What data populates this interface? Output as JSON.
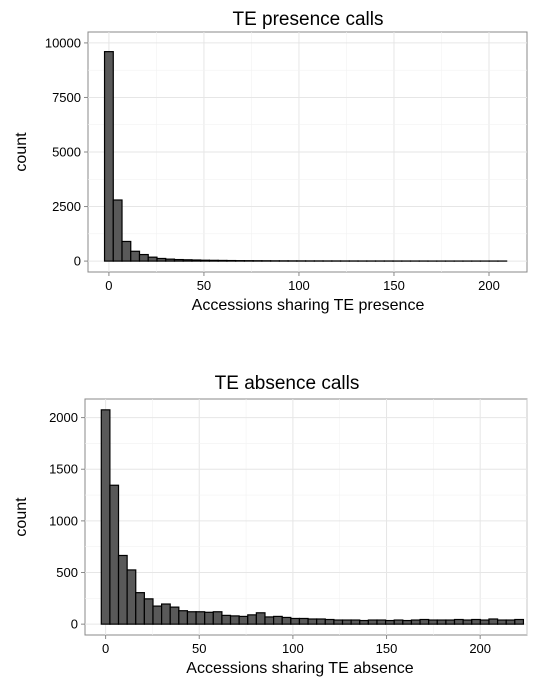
{
  "chart_data": [
    {
      "type": "bar",
      "title": "TE presence calls",
      "xlabel": "Accessions sharing TE presence",
      "ylabel": "count",
      "bin_width": 4.6,
      "x_start": -2.3,
      "xlim": [
        -11,
        220
      ],
      "ylim": [
        -500,
        10500
      ],
      "xticks": [
        0,
        50,
        100,
        150,
        200
      ],
      "yticks": [
        0,
        2500,
        5000,
        7500,
        10000
      ],
      "grid": true,
      "values": [
        9600,
        2800,
        900,
        450,
        300,
        180,
        120,
        90,
        70,
        60,
        50,
        40,
        35,
        30,
        25,
        20,
        18,
        16,
        14,
        12,
        11,
        10,
        9,
        8,
        8,
        7,
        7,
        6,
        6,
        5,
        5,
        5,
        5,
        4,
        4,
        4,
        4,
        3,
        3,
        3,
        3,
        3,
        3,
        3,
        3,
        3
      ]
    },
    {
      "type": "bar",
      "title": "TE absence calls",
      "xlabel": "Accessions sharing TE absence",
      "ylabel": "count",
      "bin_width": 4.6,
      "x_start": -2.3,
      "xlim": [
        -11,
        225
      ],
      "ylim": [
        -105,
        2180
      ],
      "xticks": [
        0,
        50,
        100,
        150,
        200
      ],
      "yticks": [
        0,
        500,
        1000,
        1500,
        2000
      ],
      "grid": true,
      "values": [
        2075,
        1345,
        665,
        525,
        305,
        245,
        175,
        195,
        165,
        130,
        120,
        120,
        115,
        120,
        85,
        80,
        75,
        90,
        110,
        70,
        75,
        65,
        55,
        55,
        50,
        50,
        45,
        40,
        40,
        40,
        35,
        40,
        40,
        35,
        40,
        35,
        40,
        45,
        40,
        40,
        40,
        45,
        40,
        45,
        40,
        50,
        40,
        40,
        45
      ]
    }
  ]
}
